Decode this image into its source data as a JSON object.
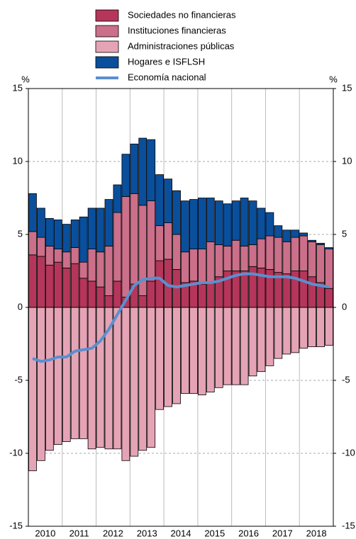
{
  "chart_data": {
    "type": "stacked_bar_line",
    "y_unit": "%",
    "categories": [
      null,
      null,
      null,
      null,
      null,
      null,
      null,
      null,
      null,
      null,
      null,
      null,
      null,
      null,
      null,
      null,
      null,
      null,
      null,
      null,
      null,
      null,
      null,
      null,
      null,
      null,
      null,
      null,
      null,
      null,
      null,
      null,
      null,
      null,
      null,
      null
    ],
    "year_labels": [
      "2010",
      "2011",
      "2012",
      "2013",
      "2014",
      "2015",
      "2016",
      "2017",
      "2018"
    ],
    "series": [
      {
        "name": "Sociedades no financieras",
        "color": "#b5365a",
        "kind": "bar",
        "values": [
          3.6,
          3.5,
          2.9,
          3.1,
          2.7,
          3.0,
          2.0,
          1.8,
          1.4,
          0.8,
          1.8,
          0.7,
          1.6,
          0.8,
          1.8,
          3.2,
          3.3,
          2.6,
          1.7,
          1.8,
          1.6,
          1.7,
          2.1,
          2.5,
          2.5,
          2.5,
          2.8,
          2.7,
          2.6,
          2.4,
          2.3,
          2.5,
          2.5,
          2.1,
          1.7,
          1.3
        ]
      },
      {
        "name": "Instituciones financieras",
        "color": "#cc6f8a",
        "kind": "bar",
        "values": [
          1.6,
          1.3,
          1.3,
          0.9,
          1.1,
          1.1,
          1.1,
          2.2,
          2.4,
          3.4,
          4.7,
          6.9,
          6.2,
          6.2,
          5.5,
          2.4,
          2.5,
          2.4,
          2.1,
          2.2,
          2.4,
          2.8,
          2.2,
          1.7,
          2.1,
          1.7,
          1.5,
          2.0,
          2.3,
          2.4,
          2.2,
          2.3,
          2.4,
          2.4,
          2.6,
          2.7
        ]
      },
      {
        "name": "Administraciones públicas",
        "color": "#e5a4b6",
        "kind": "bar",
        "values": [
          -11.2,
          -10.5,
          -9.8,
          -9.4,
          -9.2,
          -9.0,
          -9.0,
          -9.7,
          -9.6,
          -9.7,
          -9.7,
          -10.5,
          -10.2,
          -9.8,
          -9.6,
          -7.0,
          -6.8,
          -6.6,
          -5.9,
          -5.9,
          -6.0,
          -5.8,
          -5.5,
          -5.3,
          -5.3,
          -5.3,
          -4.7,
          -4.4,
          -4.0,
          -3.5,
          -3.2,
          -3.1,
          -2.8,
          -2.7,
          -2.7,
          -2.6
        ]
      },
      {
        "name": "Hogares e ISFLSH",
        "color": "#0a4f9c",
        "kind": "bar",
        "values": [
          2.6,
          2.0,
          1.9,
          2.0,
          1.9,
          1.9,
          3.1,
          2.8,
          3.0,
          3.2,
          1.9,
          2.9,
          3.4,
          4.6,
          4.2,
          3.5,
          3.0,
          3.0,
          3.5,
          3.4,
          3.5,
          3.0,
          3.0,
          2.9,
          2.7,
          3.3,
          3.0,
          2.1,
          1.6,
          0.8,
          0.8,
          0.5,
          0.2,
          0.1,
          0.1,
          0.1
        ]
      },
      {
        "name": "Economía nacional",
        "color": "#5b8fcf",
        "kind": "line",
        "values": [
          -3.5,
          -3.7,
          -3.6,
          -3.4,
          -3.4,
          -3.0,
          -2.9,
          -2.8,
          -2.3,
          -1.5,
          -0.5,
          0.5,
          1.5,
          1.9,
          2.0,
          2.0,
          1.5,
          1.4,
          1.5,
          1.6,
          1.7,
          1.7,
          1.8,
          2.0,
          2.2,
          2.3,
          2.3,
          2.2,
          2.1,
          2.1,
          2.1,
          2.0,
          1.8,
          1.6,
          1.5,
          1.4
        ]
      }
    ],
    "ylim": [
      -15,
      15
    ],
    "yticks": [
      -15,
      -10,
      -5,
      0,
      5,
      10,
      15
    ],
    "grid": true
  }
}
